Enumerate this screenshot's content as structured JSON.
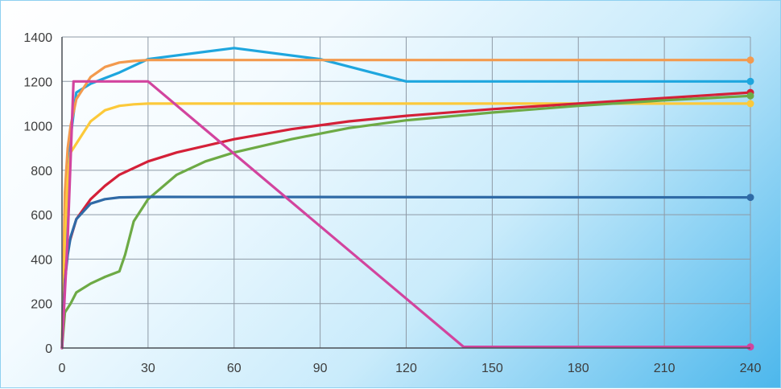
{
  "chart_data": {
    "type": "line",
    "title": "",
    "xlabel": "",
    "ylabel": "",
    "xlim": [
      0,
      240
    ],
    "ylim": [
      0,
      1400
    ],
    "x_ticks": [
      0,
      30,
      60,
      90,
      120,
      150,
      180,
      210,
      240
    ],
    "y_ticks": [
      0,
      200,
      400,
      600,
      800,
      1000,
      1200,
      1400
    ],
    "x_tick_labels": [
      "0",
      "30",
      "60",
      "90",
      "120",
      "150",
      "180",
      "210",
      "240"
    ],
    "y_tick_labels": [
      "0",
      "200",
      "400",
      "600",
      "800",
      "1000",
      "1200",
      "1400"
    ],
    "grid": true,
    "legend": "none",
    "series": [
      {
        "color": "#1ea6de",
        "end_marker": true,
        "points": [
          [
            0,
            0
          ],
          [
            1,
            400
          ],
          [
            2,
            700
          ],
          [
            3,
            950
          ],
          [
            5,
            1150
          ],
          [
            10,
            1190
          ],
          [
            20,
            1240
          ],
          [
            30,
            1300
          ],
          [
            60,
            1350
          ],
          [
            90,
            1300
          ],
          [
            120,
            1200
          ],
          [
            240,
            1200
          ]
        ]
      },
      {
        "color": "#f39a4e",
        "end_marker": true,
        "points": [
          [
            0,
            0
          ],
          [
            1,
            700
          ],
          [
            2,
            900
          ],
          [
            3,
            1000
          ],
          [
            5,
            1120
          ],
          [
            10,
            1220
          ],
          [
            15,
            1265
          ],
          [
            20,
            1285
          ],
          [
            25,
            1292
          ],
          [
            30,
            1296
          ],
          [
            240,
            1296
          ]
        ]
      },
      {
        "color": "#fcc93a",
        "end_marker": true,
        "points": [
          [
            0,
            0
          ],
          [
            1,
            500
          ],
          [
            2,
            760
          ],
          [
            3,
            880
          ],
          [
            5,
            920
          ],
          [
            10,
            1020
          ],
          [
            15,
            1070
          ],
          [
            20,
            1090
          ],
          [
            25,
            1097
          ],
          [
            30,
            1100
          ],
          [
            240,
            1100
          ]
        ]
      },
      {
        "color": "#d42038",
        "end_marker": true,
        "points": [
          [
            0,
            0
          ],
          [
            1,
            300
          ],
          [
            2,
            450
          ],
          [
            5,
            580
          ],
          [
            10,
            670
          ],
          [
            15,
            730
          ],
          [
            20,
            780
          ],
          [
            30,
            840
          ],
          [
            40,
            880
          ],
          [
            60,
            940
          ],
          [
            80,
            985
          ],
          [
            100,
            1020
          ],
          [
            120,
            1045
          ],
          [
            150,
            1075
          ],
          [
            180,
            1100
          ],
          [
            210,
            1125
          ],
          [
            240,
            1150
          ]
        ]
      },
      {
        "color": "#6daa45",
        "end_marker": true,
        "points": [
          [
            0,
            0
          ],
          [
            1,
            160
          ],
          [
            3,
            200
          ],
          [
            5,
            250
          ],
          [
            10,
            290
          ],
          [
            15,
            320
          ],
          [
            20,
            345
          ],
          [
            22,
            420
          ],
          [
            25,
            570
          ],
          [
            30,
            670
          ],
          [
            40,
            780
          ],
          [
            50,
            840
          ],
          [
            60,
            880
          ],
          [
            80,
            940
          ],
          [
            100,
            990
          ],
          [
            120,
            1025
          ],
          [
            150,
            1060
          ],
          [
            180,
            1090
          ],
          [
            210,
            1115
          ],
          [
            240,
            1135
          ]
        ]
      },
      {
        "color": "#2f6aa6",
        "end_marker": true,
        "points": [
          [
            0,
            0
          ],
          [
            1,
            300
          ],
          [
            2,
            420
          ],
          [
            3,
            500
          ],
          [
            5,
            580
          ],
          [
            10,
            650
          ],
          [
            15,
            670
          ],
          [
            20,
            678
          ],
          [
            30,
            680
          ],
          [
            240,
            678
          ]
        ]
      },
      {
        "color": "#d2449e",
        "end_marker": true,
        "points": [
          [
            0,
            0
          ],
          [
            2,
            500
          ],
          [
            4,
            1200
          ],
          [
            30,
            1200
          ],
          [
            140,
            5
          ],
          [
            240,
            5
          ]
        ]
      }
    ]
  }
}
